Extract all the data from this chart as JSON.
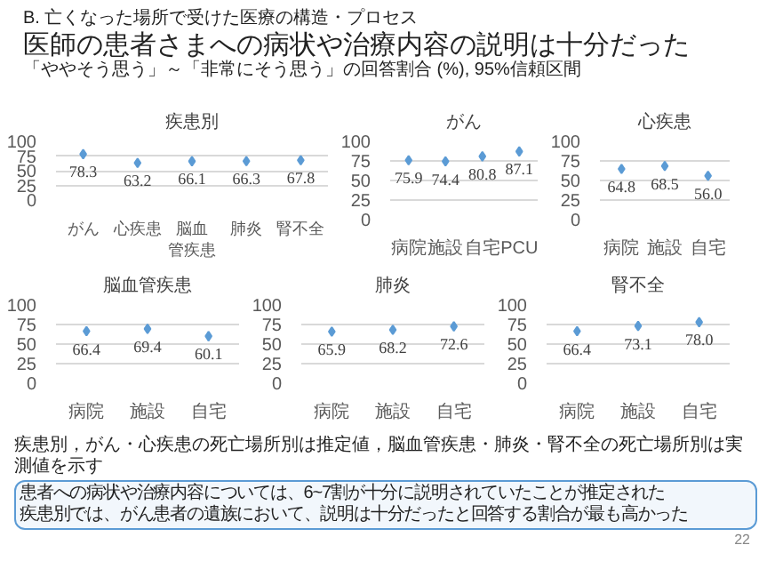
{
  "chart_data": [
    {
      "type": "scatter",
      "title": "疾患別",
      "categories": [
        "がん",
        "心疾患",
        "脳血管疾患",
        "肺炎",
        "腎不全"
      ],
      "values": [
        78.3,
        63.2,
        66.1,
        66.3,
        67.8
      ],
      "color": "#5b9bd5",
      "marker": "diamond",
      "data_labels": true,
      "ylim": [
        0,
        100
      ],
      "yticks": [
        0,
        25,
        50,
        75,
        100
      ],
      "grid": "y"
    },
    {
      "type": "scatter",
      "title": "がん",
      "categories": [
        "病院",
        "施設",
        "自宅",
        "PCU"
      ],
      "values": [
        75.9,
        74.4,
        80.8,
        87.1
      ],
      "errors": [
        2,
        3,
        3,
        2
      ],
      "color": "#5b9bd5",
      "marker": "diamond",
      "data_labels": true,
      "ylim": [
        0,
        100
      ],
      "yticks": [
        0,
        25,
        50,
        75,
        100
      ],
      "grid": "y"
    },
    {
      "type": "scatter",
      "title": "心疾患",
      "categories": [
        "病院",
        "施設",
        "自宅"
      ],
      "values": [
        64.8,
        68.5,
        56.0
      ],
      "value_labels": [
        "64.8",
        "68.5",
        "56.0"
      ],
      "errors": [
        4,
        4,
        5
      ],
      "color": "#5b9bd5",
      "marker": "diamond",
      "ylim": [
        0,
        100
      ],
      "yticks": [
        0,
        25,
        50,
        75,
        100
      ],
      "grid": "y"
    },
    {
      "type": "scatter",
      "title": "脳血管疾患",
      "categories": [
        "病院",
        "施設",
        "自宅"
      ],
      "values": [
        66.4,
        69.4,
        60.1
      ],
      "errors": [
        4,
        4,
        6
      ],
      "color": "#5b9bd5",
      "marker": "diamond",
      "data_labels": true,
      "ylim": [
        0,
        100
      ],
      "yticks": [
        0,
        25,
        50,
        75,
        100
      ],
      "grid": "y"
    },
    {
      "type": "scatter",
      "title": "肺炎",
      "categories": [
        "病院",
        "施設",
        "自宅"
      ],
      "values": [
        65.9,
        68.2,
        72.6
      ],
      "errors": [
        4,
        4,
        4
      ],
      "color": "#5b9bd5",
      "marker": "diamond",
      "data_labels": true,
      "ylim": [
        0,
        100
      ],
      "yticks": [
        0,
        25,
        50,
        75,
        100
      ],
      "grid": "y"
    },
    {
      "type": "scatter",
      "title": "腎不全",
      "categories": [
        "病院",
        "施設",
        "自宅"
      ],
      "values": [
        66.4,
        73.1,
        78.0
      ],
      "value_labels": [
        "66.4",
        "73.1",
        "78.0"
      ],
      "errors": [
        4,
        4,
        3
      ],
      "color": "#5b9bd5",
      "marker": "diamond",
      "ylim": [
        0,
        100
      ],
      "yticks": [
        0,
        25,
        50,
        75,
        100
      ],
      "grid": "y"
    },
    {
      "type": "other",
      "title": "医師の患者さまへの病状や治療内容の説明は十分だった",
      "subtitle": "「ややそう思う」～「非常にそう思う」の回答割合 (%), 95%信頼区間",
      "annotations": [
        "B. 亡くなった場所で受けた医療の構造・プロセス",
        "疾患別，がん・心疾患の死亡場所別は推定値，脳血管疾患・肺炎・腎不全の死亡場所別は実測値を示す",
        "患者への病状や治療内容については、6~7割が十分に説明されていたことが推定された",
        "疾患別では、がん患者の遺族において、説明は十分だったと回答する割合が最も高かった",
        "22"
      ]
    }
  ]
}
